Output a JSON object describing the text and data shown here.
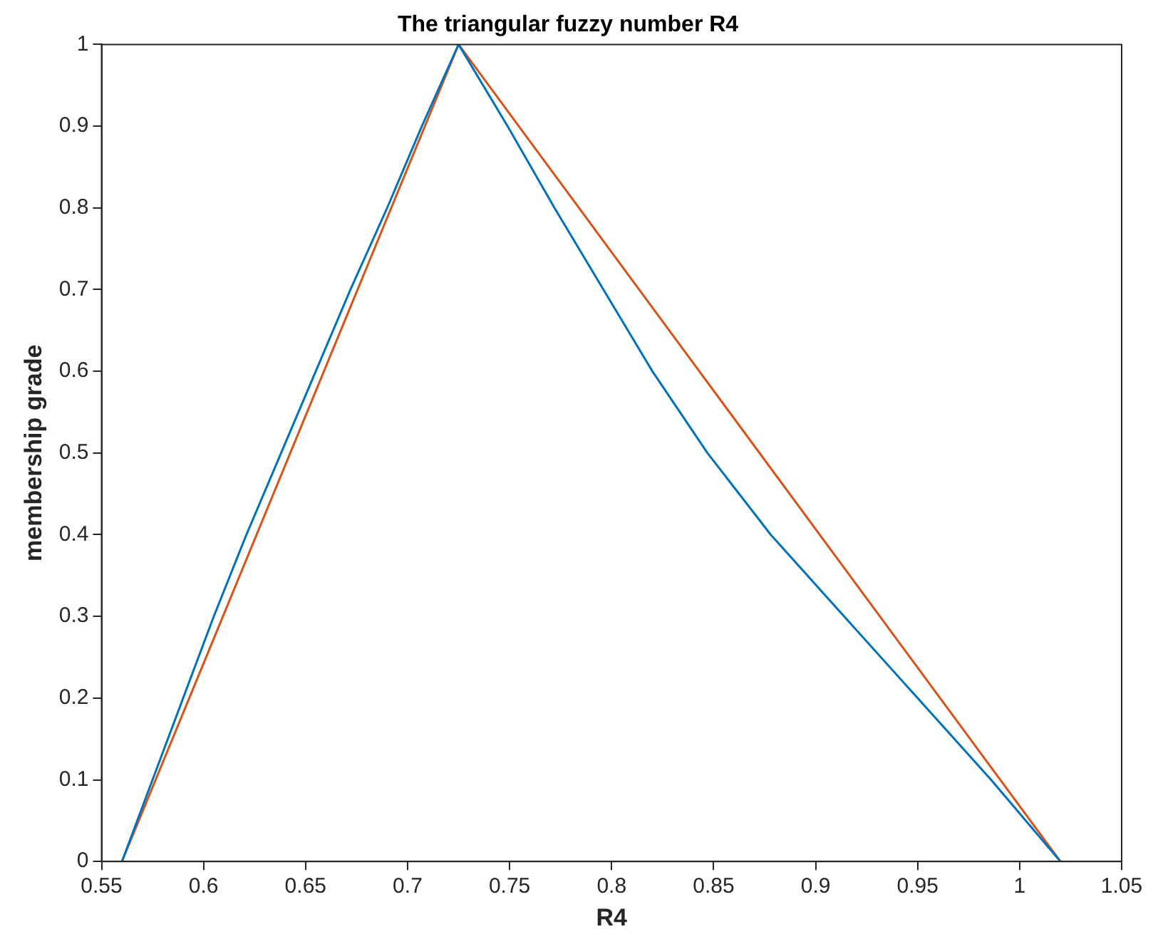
{
  "chart_data": {
    "type": "line",
    "title": "The triangular fuzzy number R4",
    "xlabel": "R4",
    "ylabel": "membership grade",
    "xlim": [
      0.55,
      1.05
    ],
    "xticks": [
      0.55,
      0.6,
      0.65,
      0.7,
      0.75,
      0.8,
      0.85,
      0.9,
      0.95,
      1,
      1.05
    ],
    "ylim": [
      0,
      1
    ],
    "yticks": [
      0,
      0.1,
      0.2,
      0.3,
      0.4,
      0.5,
      0.6,
      0.7,
      0.8,
      0.9,
      1
    ],
    "grid": false,
    "legend": false,
    "marker": "none",
    "line_style": "solid",
    "series": [
      {
        "color": "#0072bd",
        "x": [
          0.56,
          0.575,
          0.59,
          0.605,
          0.621,
          0.638,
          0.655,
          0.672,
          0.69,
          0.707,
          0.725,
          0.749,
          0.772,
          0.796,
          0.82,
          0.847,
          0.878,
          0.914,
          0.95,
          0.986,
          1.02
        ],
        "values": [
          0,
          0.1,
          0.2,
          0.3,
          0.4,
          0.5,
          0.6,
          0.7,
          0.8,
          0.9,
          1,
          0.9,
          0.8,
          0.7,
          0.6,
          0.5,
          0.4,
          0.3,
          0.2,
          0.1,
          0
        ]
      },
      {
        "color": "#d95319",
        "x": [
          0.56,
          0.725,
          1.02
        ],
        "values": [
          0,
          1,
          0
        ]
      }
    ]
  }
}
